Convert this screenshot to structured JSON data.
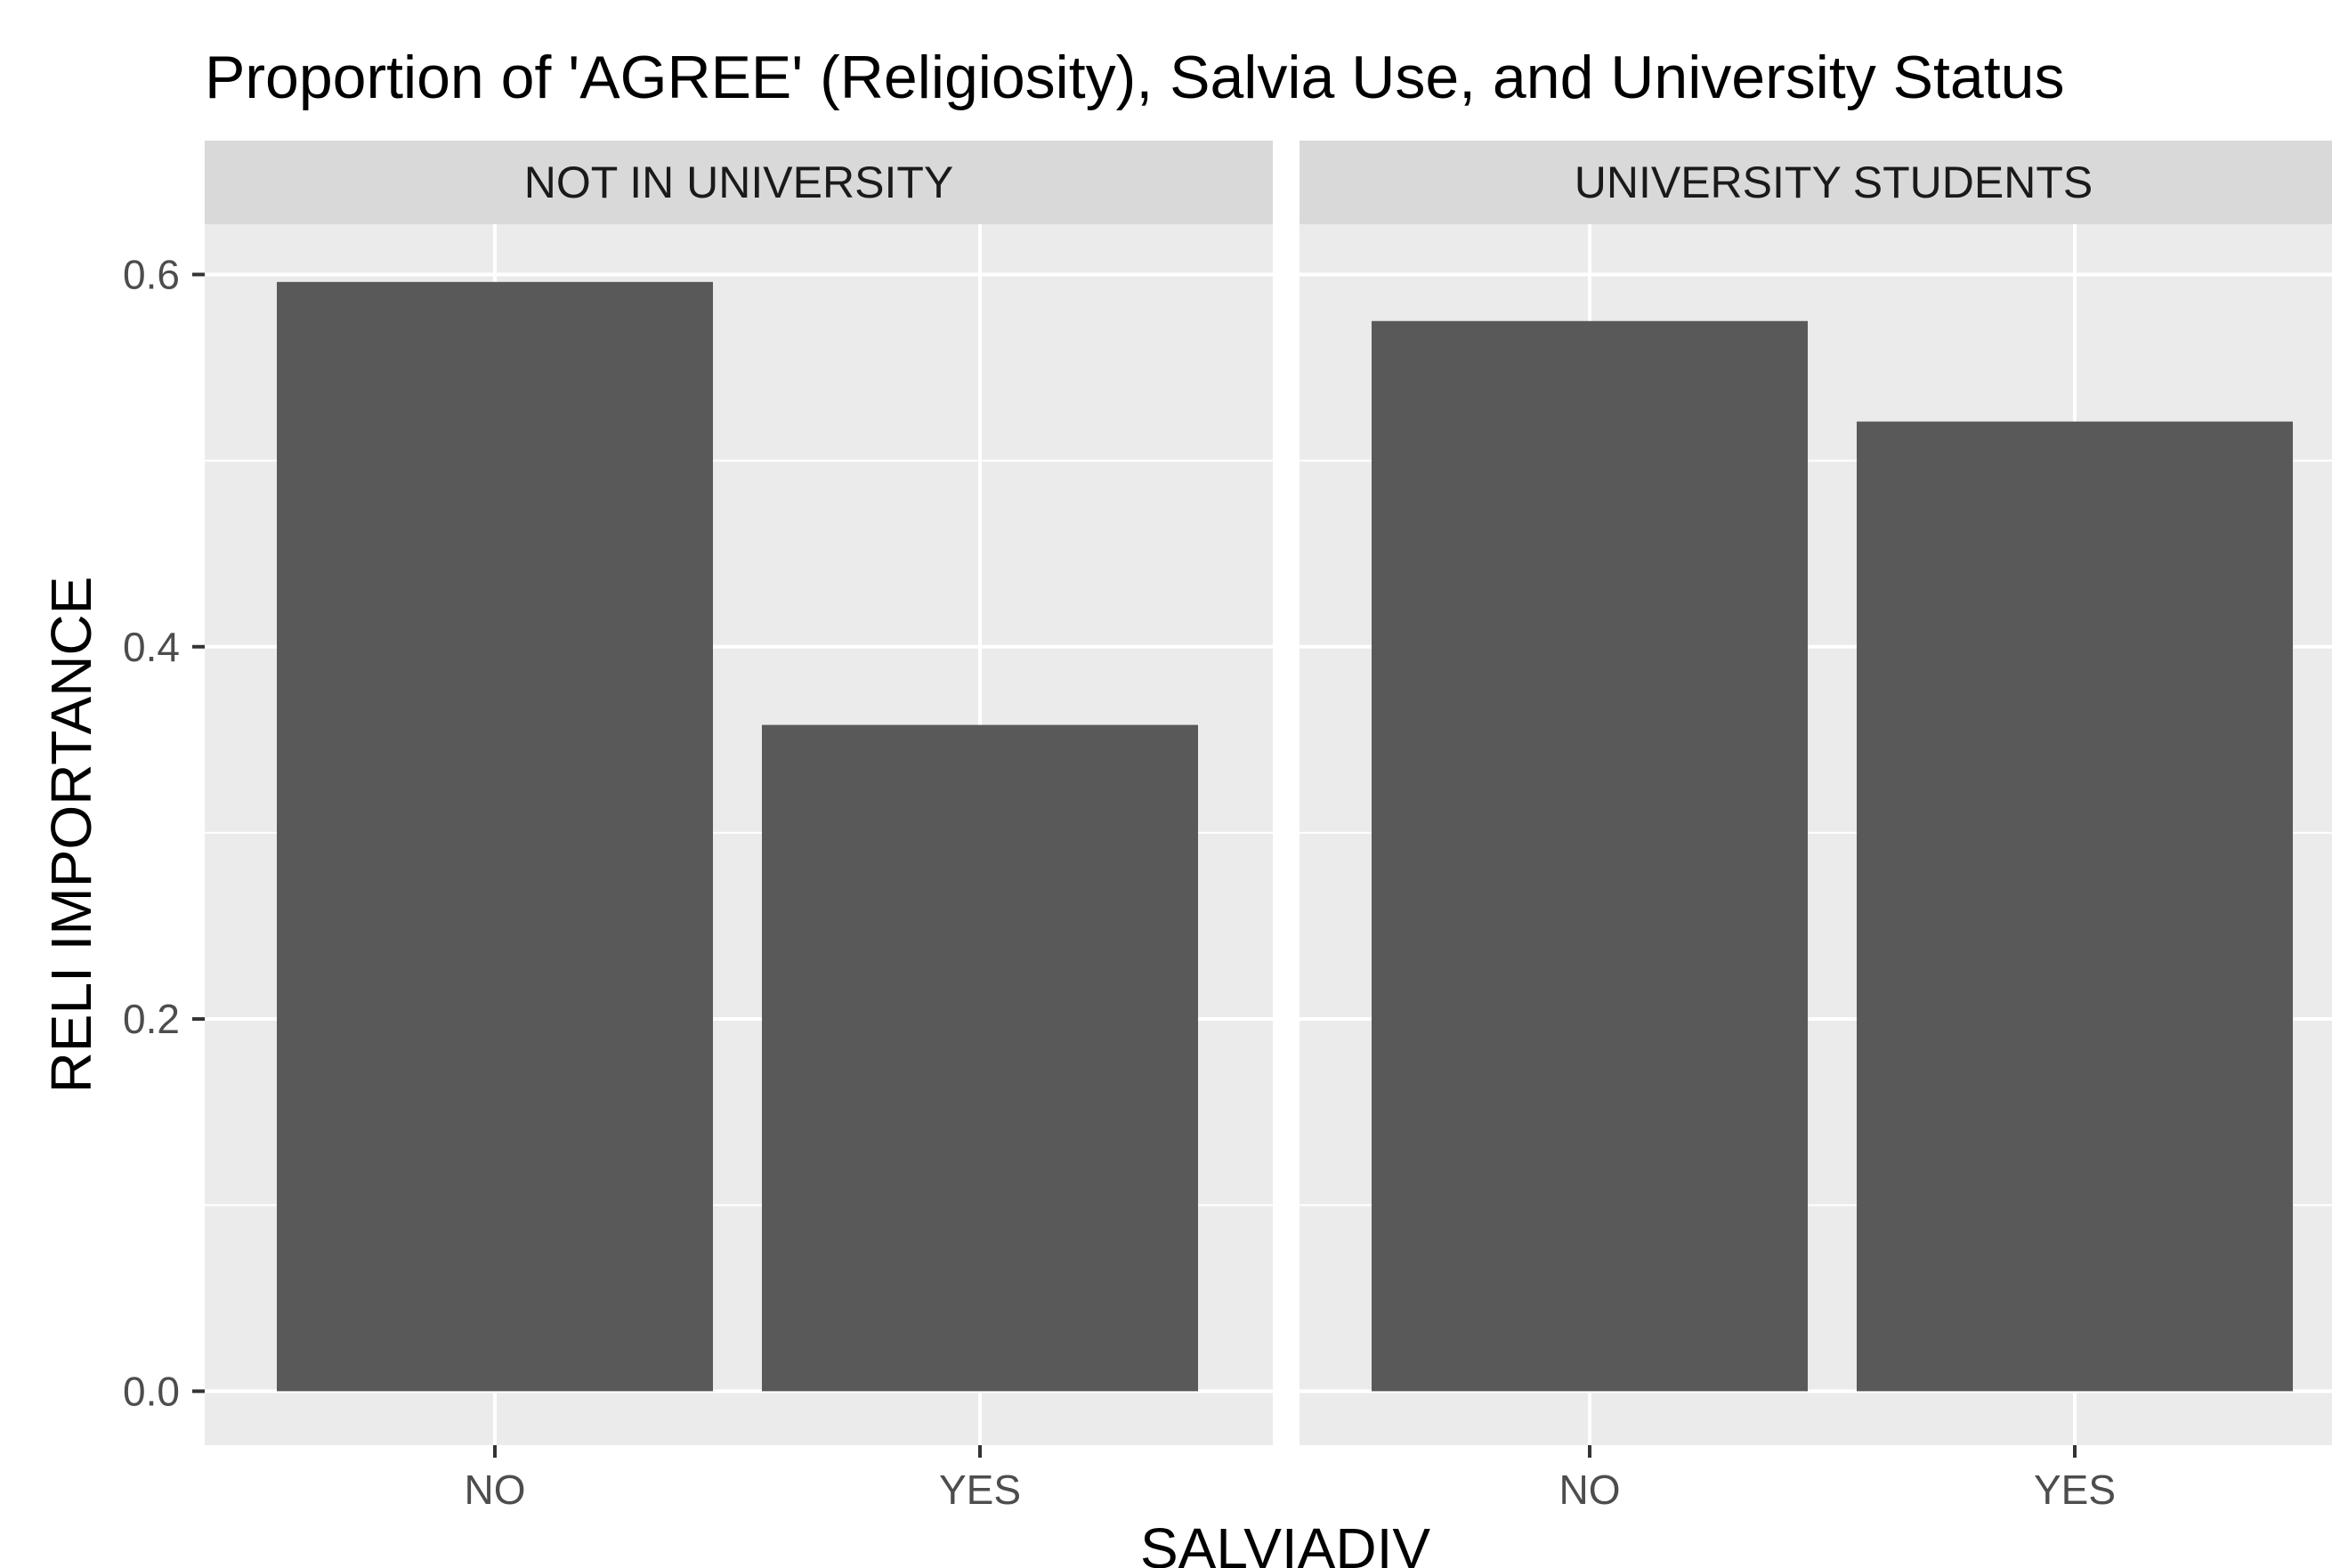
{
  "chart_data": {
    "type": "bar",
    "title": "Proportion of 'AGREE' (Religiosity), Salvia Use, and University Status",
    "xlabel": "SALVIADIV",
    "ylabel": "RELI IMPORTANCE",
    "categories": [
      "NO",
      "YES"
    ],
    "ylim": [
      -0.029,
      0.627
    ],
    "yticks": [
      0.0,
      0.2,
      0.4,
      0.6
    ],
    "ytick_labels": [
      "0.0",
      "0.2",
      "0.4",
      "0.6"
    ],
    "grid": true,
    "facets": [
      {
        "label": "NOT IN UNIVERSITY",
        "values": [
          0.596,
          0.358
        ]
      },
      {
        "label": "UNIVERSITY STUDENTS",
        "values": [
          0.575,
          0.521
        ]
      }
    ],
    "colors": {
      "bar": "#595959",
      "panel_bg": "#ebebeb",
      "strip_bg": "#d9d9d9",
      "grid": "#ffffff",
      "tick": "#333333"
    }
  }
}
